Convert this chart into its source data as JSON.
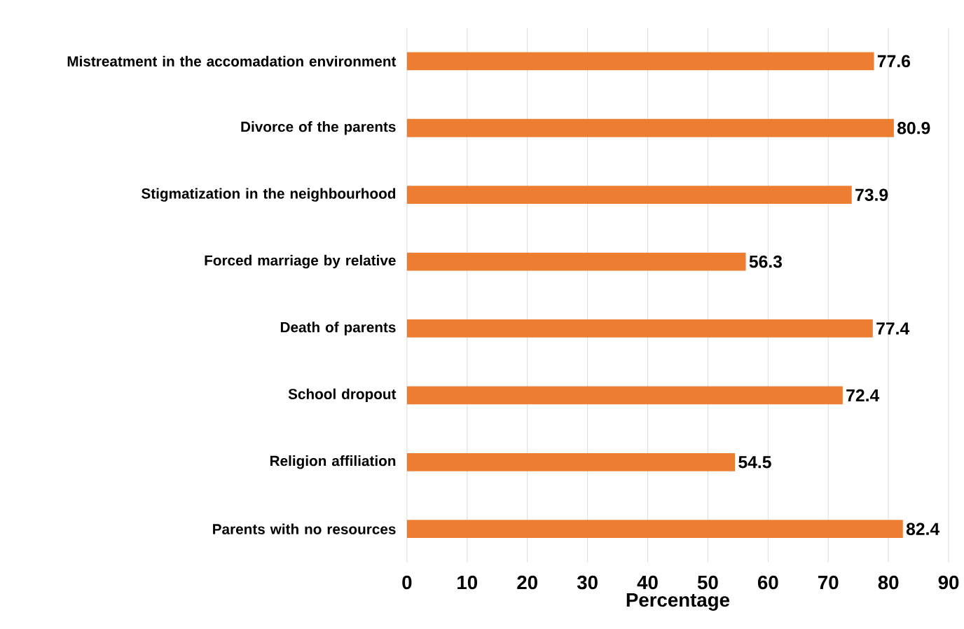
{
  "chart_data": {
    "type": "bar",
    "orientation": "horizontal",
    "xlabel": "Percentage",
    "categories": [
      "Mistreatment in the accomadation environment",
      "Divorce of the parents",
      "Stigmatization in the neighbourhood",
      "Forced marriage by relative",
      "Death of parents",
      "School dropout",
      "Religion affiliation",
      "Parents with no resources"
    ],
    "values": [
      77.6,
      80.9,
      73.9,
      56.3,
      77.4,
      72.4,
      54.5,
      82.4
    ],
    "color": "#ed7d31",
    "xlim": [
      0,
      90
    ],
    "xticks": [
      0,
      10,
      20,
      30,
      40,
      50,
      60,
      70,
      80,
      90
    ],
    "grid": "x",
    "data_labels": true
  }
}
